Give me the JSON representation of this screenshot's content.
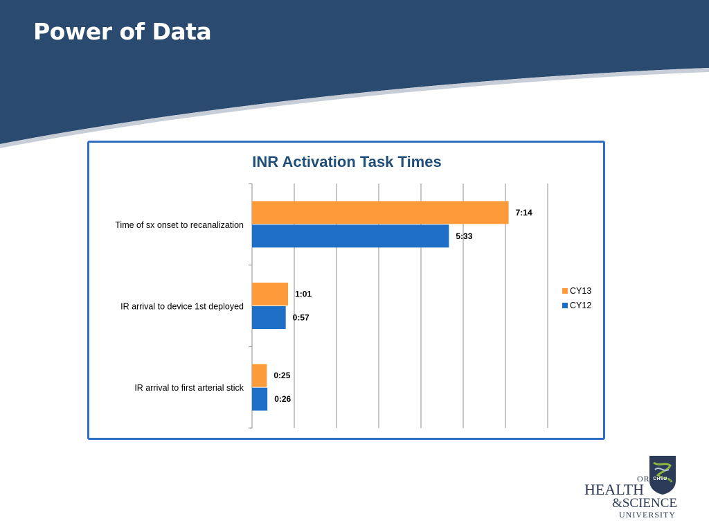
{
  "slide": {
    "title": "Power of Data"
  },
  "colors": {
    "header": "#2b4a6f",
    "frame": "#2e6fc4",
    "cy13": "#fd9a3a",
    "cy12": "#1f6fc6"
  },
  "chart_data": {
    "type": "bar",
    "orientation": "horizontal",
    "title": "INR Activation Task Times",
    "categories": [
      "Time of sx onset to recanalization",
      "IR arrival to device 1st deployed",
      "IR arrival to first arterial stick"
    ],
    "series": [
      {
        "name": "CY13",
        "values": [
          434,
          61,
          25
        ],
        "labels": [
          "7:14",
          "1:01",
          "0:25"
        ]
      },
      {
        "name": "CY12",
        "values": [
          333,
          57,
          26
        ],
        "labels": [
          "5:33",
          "0:57",
          "0:26"
        ]
      }
    ],
    "value_unit": "seconds",
    "xlim": [
      0,
      500
    ],
    "grid": true,
    "legend_position": "right"
  },
  "logo": {
    "lines": [
      "OREGON",
      "HEALTH",
      "&SCIENCE",
      "UNIVERSITY"
    ],
    "shield_text": "OHSU"
  }
}
